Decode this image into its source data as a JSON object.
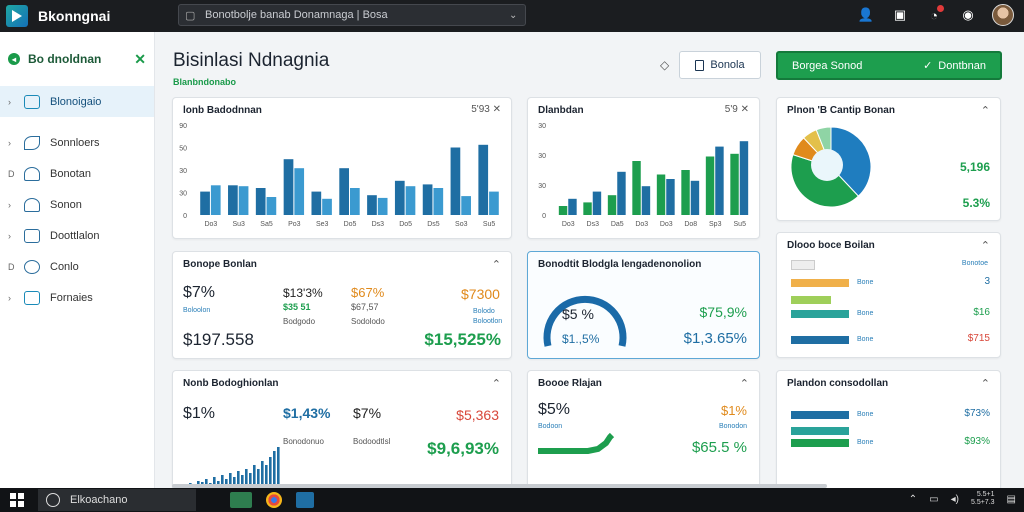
{
  "app": {
    "title": "Bkonngnai"
  },
  "search": {
    "query": "Bonotbolje banab Donamnaga | Bosa"
  },
  "sidebar": {
    "header": "Bo dnoldnan",
    "items": [
      {
        "label": "Blonoigaio",
        "active": true
      },
      {
        "label": "Sonnloers",
        "active": false
      },
      {
        "label": "Bonotan",
        "active": false
      },
      {
        "label": "Sonon",
        "active": false
      },
      {
        "label": "Doottlalon",
        "active": false
      },
      {
        "label": "Conlo",
        "active": false
      },
      {
        "label": "Fornaies",
        "active": false
      }
    ]
  },
  "header": {
    "title": "Bisinlasi Ndnagnia",
    "subtitle": "Blanbndonabo",
    "btn_outline": "Bonola",
    "btn_green_left": "Borgea Sonod",
    "btn_green_right": "Dontbnan"
  },
  "cards": {
    "c1": {
      "title": "lonb Badodnnan",
      "meta": "5'93 ✕"
    },
    "c2": {
      "title": "Dlanbdan",
      "meta": "5'9 ✕"
    },
    "c3": {
      "title": "Plnon 'B Cantip Bonan",
      "val1": "5,196",
      "val2": "5.3%"
    },
    "c4": {
      "title": "Bonope Bonlan",
      "a1": "$7%",
      "a2": "$13'3%",
      "a3": "$67%",
      "a4": "$7300",
      "b2": "$35 51",
      "b3": "$67,57",
      "s1": "Boloolon",
      "s2": "Bodgodo",
      "s3": "Sodolodo",
      "s4": "Bolodo",
      "s5": "Bolootlon",
      "total": "$197.558",
      "total2": "$15,525%"
    },
    "c5": {
      "title": "Bonodtit Blodgla lengadenonolion",
      "gauge": "$5 %",
      "gauge2": "$1.,5%",
      "v1": "$75,9%",
      "v2": "$1,3.65%"
    },
    "c6": {
      "title": "Dlooo boce Boilan",
      "rows": [
        {
          "label": "Bone",
          "val": "3"
        },
        {
          "label": "Bone",
          "val": "$16"
        },
        {
          "label": "Bone",
          "val": "$715"
        }
      ],
      "top": "Bonotoe"
    },
    "c7": {
      "title": "Nonb Bodoghionlan",
      "a1": "$1%",
      "a2": "$1,43%",
      "a3": "$7%",
      "a4": "$5,363",
      "s1": "Bonodonuo",
      "s2": "Bodoodtlsl",
      "total": "$9,6,93%"
    },
    "c8": {
      "title": "Boooe Rlajan",
      "a1": "$5%",
      "a2": "$1%",
      "s1": "Bodoon",
      "s2": "Bonodon",
      "total": "$65.5 %"
    },
    "c9": {
      "title": "Plandon consodollan",
      "rows": [
        {
          "label": "Bone",
          "val": "$73%"
        },
        {
          "label": "Bone",
          "val": "$93%"
        }
      ]
    }
  },
  "bar_chart_1": {
    "type": "bar",
    "yticks": [
      "90",
      "50",
      "30",
      "30",
      "0"
    ],
    "categories": [
      "Do3",
      "Su3",
      "Sa5",
      "Po3",
      "Se3",
      "Do5",
      "Ds3",
      "Do5",
      "Ds5",
      "So3",
      "Su5"
    ],
    "series": [
      {
        "values": [
          26,
          33,
          30,
          62,
          26,
          52,
          22,
          38,
          34,
          75,
          78
        ]
      },
      {
        "values": [
          33,
          32,
          20,
          52,
          18,
          30,
          19,
          32,
          30,
          21,
          26
        ]
      }
    ],
    "ylim": [
      0,
      100
    ]
  },
  "bar_chart_2": {
    "type": "bar",
    "yticks": [
      "30",
      "30",
      "30",
      "0"
    ],
    "categories": [
      "Do3",
      "Ds3",
      "Da5",
      "Do3",
      "Do3",
      "Do8",
      "Sp3",
      "Su5"
    ],
    "series": [
      {
        "values": [
          10,
          14,
          22,
          60,
          45,
          50,
          65,
          68
        ]
      },
      {
        "values": [
          18,
          26,
          48,
          32,
          40,
          38,
          76,
          82
        ]
      }
    ],
    "ylim": [
      0,
      100
    ]
  },
  "pie_chart": {
    "type": "pie",
    "values": [
      38,
      42,
      8,
      6,
      6
    ],
    "colors": [
      "#1f7dbf",
      "#1d9e4e",
      "#e08a1c",
      "#e3c04a",
      "#8fd4a5"
    ]
  },
  "taskbar": {
    "search": "Elkoachano",
    "time": "5.5+1",
    "date": "5.5+7.3"
  }
}
